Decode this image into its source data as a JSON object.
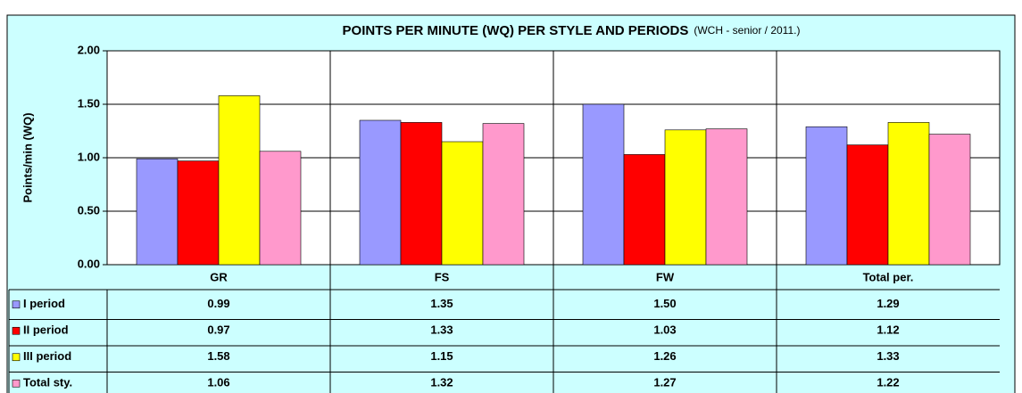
{
  "chart_data": {
    "type": "bar",
    "title": "POINTS PER MINUTE  (WQ) PER STYLE AND PERIODS",
    "subtitle": "(WCH - senior / 2011.)",
    "y_label": "Points/min (WQ)",
    "categories": [
      "GR",
      "FS",
      "FW",
      "Total per."
    ],
    "series": [
      {
        "name": "I period",
        "color": "#9999ff",
        "values": [
          0.99,
          1.35,
          1.5,
          1.29
        ],
        "value_labels": [
          "0.99",
          "1.35",
          "1.50",
          "1.29"
        ]
      },
      {
        "name": "II period",
        "color": "#ff0000",
        "values": [
          0.97,
          1.33,
          1.03,
          1.12
        ],
        "value_labels": [
          "0.97",
          "1.33",
          "1.03",
          "1.12"
        ]
      },
      {
        "name": "III period",
        "color": "#ffff00",
        "values": [
          1.58,
          1.15,
          1.26,
          1.33
        ],
        "value_labels": [
          "1.58",
          "1.15",
          "1.26",
          "1.33"
        ]
      },
      {
        "name": "Total sty.",
        "color": "#ff99cc",
        "values": [
          1.06,
          1.32,
          1.27,
          1.22
        ],
        "value_labels": [
          "1.06",
          "1.32",
          "1.27",
          "1.22"
        ]
      }
    ],
    "ylim": [
      0,
      2
    ],
    "yticks": [
      {
        "value": 0,
        "label": "0.00"
      },
      {
        "value": 0.5,
        "label": "0.50"
      },
      {
        "value": 1,
        "label": "1.00"
      },
      {
        "value": 1.5,
        "label": "1.50"
      },
      {
        "value": 2,
        "label": "2.00"
      }
    ],
    "grid": true
  }
}
